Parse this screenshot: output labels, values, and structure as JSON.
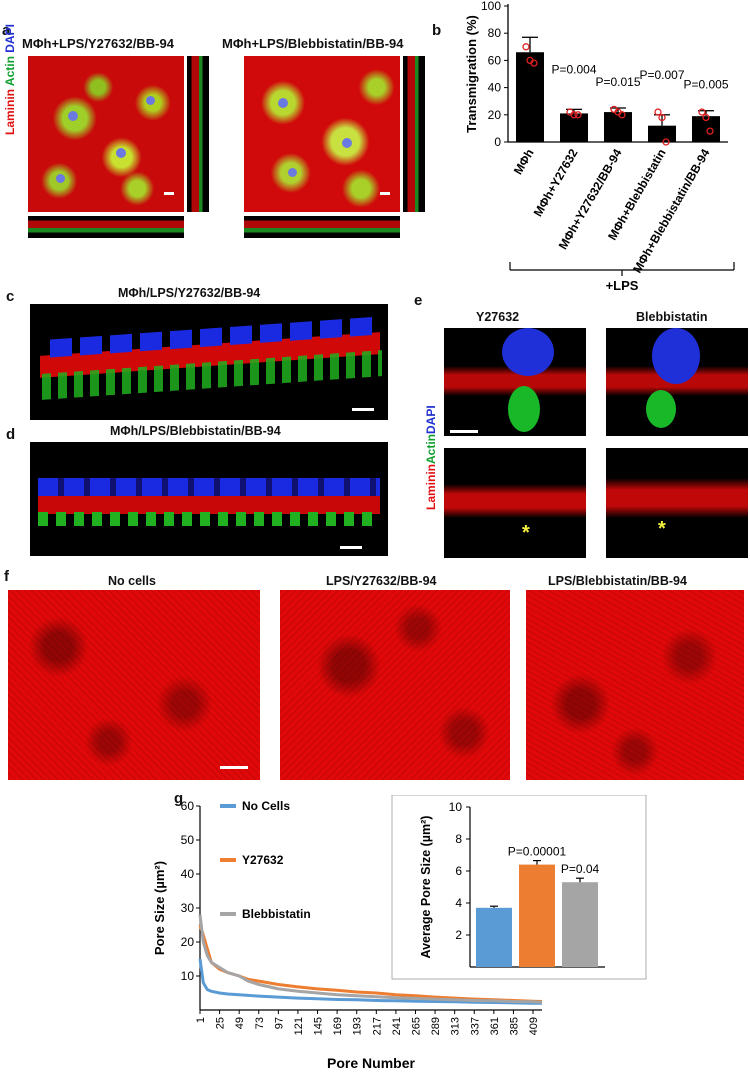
{
  "panel_labels": {
    "a": "a",
    "b": "b",
    "c": "c",
    "d": "d",
    "e": "e",
    "f": "f",
    "g": "g"
  },
  "panel_a": {
    "title_left": "MΦh+LPS/Y27632/BB-94",
    "title_right": "MΦh+LPS/Blebbistatin/BB-94",
    "stain_laminin": "Laminin",
    "stain_actin": "Actin",
    "stain_dapi": "DAPI"
  },
  "panel_b": {
    "ylabel": "Transmigration (%)",
    "group_label": "+LPS",
    "pvals": [
      "P=0.004",
      "P=0.015",
      "P=0.007",
      "P=0.005"
    ]
  },
  "panel_c": {
    "title": "MΦh/LPS/Y27632/BB-94"
  },
  "panel_d": {
    "title": "MΦh/LPS/Blebbistatin/BB-94"
  },
  "panel_e": {
    "col_left": "Y27632",
    "col_right": "Blebbistatin",
    "stain_laminin": "Laminin",
    "stain_actin": "Actin",
    "stain_dapi": "DAPI",
    "asterisk": "*"
  },
  "panel_f": {
    "titles": [
      "No cells",
      "LPS/Y27632/BB-94",
      "LPS/Blebbistatin/BB-94"
    ]
  },
  "panel_g": {
    "legend": [
      "No Cells",
      "Y27632",
      "Blebbistatin"
    ],
    "line_ylabel": "Pore Size (µm²)",
    "line_xlabel": "Pore Number",
    "bar_ylabel": "Average Pore Size (µm²)",
    "bar_pvals": [
      "P=0.00001",
      "P=0.04"
    ]
  },
  "chart_data": [
    {
      "type": "bar",
      "ylabel": "Transmigration (%)",
      "ylim": [
        0,
        100
      ],
      "yticks": [
        0,
        20,
        40,
        60,
        80,
        100
      ],
      "categories": [
        "MΦh",
        "MΦh+Y27632",
        "MΦh+Y27632/BB-94",
        "MΦh+Blebbistatin",
        "MΦh+Blebbistatin/BB-94"
      ],
      "values": [
        66,
        21,
        22,
        12,
        19
      ],
      "errors": [
        11,
        3,
        3,
        8,
        4
      ],
      "points": [
        [
          70,
          60,
          58
        ],
        [
          22,
          20,
          20
        ],
        [
          24,
          22,
          20
        ],
        [
          22,
          18,
          0
        ],
        [
          22,
          18,
          8
        ]
      ],
      "pvalue_labels": [
        "",
        "P=0.004",
        "P=0.015",
        "P=0.007",
        "P=0.005"
      ],
      "colors": {
        "bar": "#000000",
        "points": "#e02020"
      }
    },
    {
      "type": "line",
      "xlabel": "Pore Number",
      "ylabel": "Pore Size (µm²)",
      "ylim": [
        0,
        60
      ],
      "yticks": [
        10,
        20,
        30,
        40,
        50,
        60
      ],
      "xticks": [
        1,
        25,
        49,
        73,
        97,
        121,
        145,
        169,
        193,
        217,
        241,
        265,
        289,
        313,
        337,
        361,
        385,
        409
      ],
      "x": [
        1,
        5,
        10,
        15,
        25,
        35,
        49,
        60,
        73,
        97,
        121,
        145,
        169,
        193,
        217,
        241,
        265,
        289,
        313,
        337,
        361,
        385,
        409,
        420
      ],
      "series": [
        {
          "name": "No Cells",
          "color": "#5b9bd5",
          "values": [
            15,
            8,
            6,
            5.5,
            5,
            4.7,
            4.5,
            4.3,
            4.1,
            3.8,
            3.5,
            3.3,
            3.1,
            3,
            2.8,
            2.7,
            2.6,
            2.5,
            2.4,
            2.3,
            2.2,
            2.1,
            2,
            2
          ]
        },
        {
          "name": "Y27632",
          "color": "#ed7d31",
          "values": [
            25,
            22,
            18,
            14,
            12,
            11,
            10,
            9,
            8.5,
            7.5,
            6.8,
            6.2,
            5.8,
            5.3,
            5,
            4.5,
            4.2,
            3.8,
            3.5,
            3.2,
            3,
            2.8,
            2.6,
            2.5
          ]
        },
        {
          "name": "Blebbistatin",
          "color": "#a5a5a5",
          "values": [
            28,
            20,
            16,
            14,
            12.5,
            11,
            10,
            8.5,
            7.5,
            6.2,
            5.5,
            5,
            4.5,
            4.2,
            3.9,
            3.6,
            3.4,
            3.2,
            3,
            2.8,
            2.7,
            2.5,
            2.4,
            2.3
          ]
        }
      ]
    },
    {
      "type": "bar",
      "ylabel": "Average Pore Size (µm²)",
      "ylim": [
        0,
        10
      ],
      "yticks": [
        2,
        4,
        6,
        8,
        10
      ],
      "categories": [
        "No Cells",
        "Y27632",
        "Blebbistatin"
      ],
      "values": [
        3.7,
        6.4,
        5.3
      ],
      "errors": [
        0.1,
        0.25,
        0.25
      ],
      "colors": [
        "#5b9bd5",
        "#ed7d31",
        "#a5a5a5"
      ],
      "pvalue_labels": [
        "",
        "P=0.00001",
        "P=0.04"
      ]
    }
  ]
}
